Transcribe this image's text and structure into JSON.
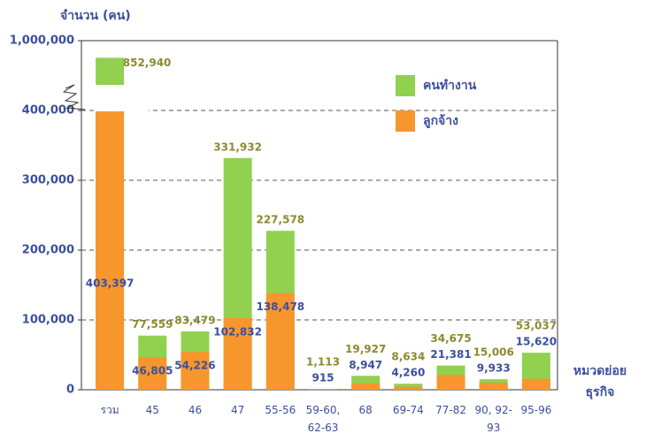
{
  "chart_data": {
    "type": "bar",
    "y_axis_label": "จำนวน (คน)",
    "x_axis_label": "หมวดย่อย ธุรกิจ",
    "categories": [
      "รวม",
      "45",
      "46",
      "47",
      "55-56",
      "59-60, 62-63",
      "68",
      "69-74",
      "77-82",
      "90, 92-93",
      "95-96"
    ],
    "series": [
      {
        "name": "คนทำงาน",
        "color": "#92d050",
        "values": [
          852940,
          77559,
          83479,
          331932,
          227578,
          1113,
          19927,
          8634,
          34675,
          15006,
          53037
        ],
        "value_labels": [
          "852,940",
          "77,559",
          "83,479",
          "331,932",
          "227,578",
          "1,113",
          "19,927",
          "8,634",
          "34,675",
          "15,006",
          "53,037"
        ]
      },
      {
        "name": "ลูกจ้าง",
        "color": "#f7962d",
        "values": [
          403397,
          46805,
          54226,
          102832,
          138478,
          915,
          8947,
          4260,
          21381,
          9933,
          15620
        ],
        "value_labels": [
          "403,397",
          "46,805",
          "54,226",
          "102,832",
          "138,478",
          "915",
          "8,947",
          "4,260",
          "21,381",
          "9,933",
          "15,620"
        ]
      }
    ],
    "ylim": [
      0,
      1000000
    ],
    "yticks": [
      0,
      {
        "value": 100000,
        "label": "100,000"
      },
      {
        "value": 200000,
        "label": "200,000"
      },
      {
        "value": 300000,
        "label": "300,000"
      },
      {
        "value": 400000,
        "label": "400,000"
      },
      {
        "value": 1000000,
        "label": "1,000,000"
      }
    ],
    "grid": true
  }
}
